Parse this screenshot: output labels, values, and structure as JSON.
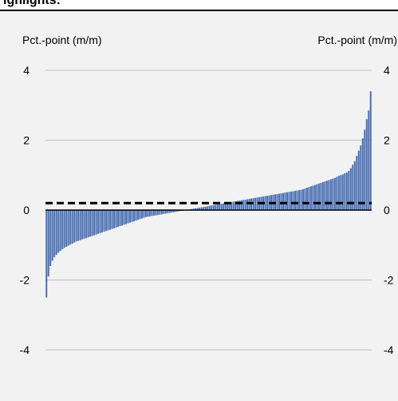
{
  "chart_data": {
    "type": "bar",
    "title": "ighlights:",
    "ylabel_left": "Pct.-point (m/m)",
    "ylabel_right": "Pct.-point (m/m)",
    "ylim": [
      -5,
      4
    ],
    "yticks": [
      -4,
      -2,
      0,
      2,
      4
    ],
    "grid": true,
    "reference_line": {
      "y": 0.2,
      "style": "dashed"
    },
    "values": [
      -2.5,
      -1.9,
      -1.6,
      -1.45,
      -1.35,
      -1.28,
      -1.22,
      -1.17,
      -1.12,
      -1.08,
      -1.05,
      -1.02,
      -0.99,
      -0.96,
      -0.93,
      -0.9,
      -0.88,
      -0.86,
      -0.84,
      -0.82,
      -0.8,
      -0.78,
      -0.76,
      -0.74,
      -0.72,
      -0.7,
      -0.68,
      -0.66,
      -0.64,
      -0.62,
      -0.6,
      -0.58,
      -0.56,
      -0.54,
      -0.52,
      -0.5,
      -0.48,
      -0.46,
      -0.44,
      -0.42,
      -0.4,
      -0.38,
      -0.36,
      -0.34,
      -0.32,
      -0.3,
      -0.28,
      -0.26,
      -0.24,
      -0.22,
      -0.2,
      -0.19,
      -0.18,
      -0.17,
      -0.16,
      -0.15,
      -0.14,
      -0.13,
      -0.12,
      -0.11,
      -0.1,
      -0.09,
      -0.08,
      -0.07,
      -0.06,
      -0.05,
      -0.04,
      -0.03,
      -0.02,
      -0.01,
      0.0,
      0.01,
      0.02,
      0.03,
      0.04,
      0.05,
      0.06,
      0.07,
      0.08,
      0.09,
      0.1,
      0.11,
      0.12,
      0.13,
      0.14,
      0.15,
      0.16,
      0.17,
      0.18,
      0.19,
      0.2,
      0.21,
      0.22,
      0.23,
      0.24,
      0.25,
      0.26,
      0.27,
      0.28,
      0.29,
      0.3,
      0.31,
      0.32,
      0.33,
      0.34,
      0.35,
      0.36,
      0.37,
      0.38,
      0.39,
      0.4,
      0.41,
      0.42,
      0.43,
      0.44,
      0.45,
      0.46,
      0.47,
      0.48,
      0.49,
      0.5,
      0.51,
      0.52,
      0.53,
      0.54,
      0.55,
      0.56,
      0.57,
      0.58,
      0.6,
      0.62,
      0.64,
      0.66,
      0.68,
      0.7,
      0.72,
      0.74,
      0.76,
      0.78,
      0.8,
      0.82,
      0.84,
      0.86,
      0.88,
      0.9,
      0.92,
      0.95,
      0.98,
      1.0,
      1.02,
      1.05,
      1.08,
      1.12,
      1.2,
      1.3,
      1.4,
      1.55,
      1.7,
      1.85,
      2.05,
      2.3,
      2.6,
      2.85,
      3.4
    ],
    "colors": {
      "bar": "#4a6fb3",
      "gridline": "#bfbfbf",
      "zero_line": "#000000",
      "reference_line": "#000000",
      "background": "#f2f2f2",
      "text": "#000000"
    }
  }
}
